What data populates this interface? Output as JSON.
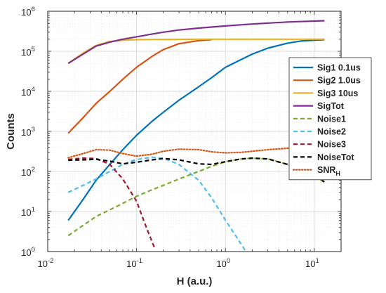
{
  "chart_data": {
    "type": "line",
    "title": "",
    "xlabel": "H (a.u.)",
    "ylabel": "Counts",
    "xscale": "log",
    "yscale": "log",
    "xlim": [
      0.01,
      20
    ],
    "ylim": [
      1,
      1000000
    ],
    "grid": true,
    "legend_position": "right",
    "x_ticks": [
      {
        "base": "10",
        "exp": "-2",
        "value": 0.01
      },
      {
        "base": "10",
        "exp": "-1",
        "value": 0.1
      },
      {
        "base": "10",
        "exp": "0",
        "value": 1
      },
      {
        "base": "10",
        "exp": "1",
        "value": 10
      }
    ],
    "y_ticks": [
      {
        "base": "10",
        "exp": "0",
        "value": 1
      },
      {
        "base": "10",
        "exp": "1",
        "value": 10
      },
      {
        "base": "10",
        "exp": "2",
        "value": 100
      },
      {
        "base": "10",
        "exp": "3",
        "value": 1000
      },
      {
        "base": "10",
        "exp": "4",
        "value": 10000
      },
      {
        "base": "10",
        "exp": "5",
        "value": 100000
      },
      {
        "base": "10",
        "exp": "6",
        "value": 1000000
      }
    ],
    "series": [
      {
        "name": "Sig1 0.1us",
        "color": "#0072BD",
        "dash": "solid",
        "x": [
          0.017,
          0.025,
          0.035,
          0.05,
          0.07,
          0.1,
          0.15,
          0.2,
          0.3,
          0.5,
          0.7,
          1,
          1.5,
          2,
          3,
          5,
          7,
          10,
          13
        ],
        "y": [
          6,
          20,
          60,
          150,
          350,
          800,
          1800,
          3000,
          6000,
          13000,
          22000,
          40000,
          62000,
          85000,
          120000,
          160000,
          180000,
          190000,
          195000
        ]
      },
      {
        "name": "Sig2 1.0us",
        "color": "#D95319",
        "dash": "solid",
        "x": [
          0.017,
          0.025,
          0.035,
          0.05,
          0.07,
          0.1,
          0.15,
          0.2,
          0.3,
          0.5,
          0.7
        ],
        "y": [
          900,
          2200,
          5000,
          10000,
          20000,
          40000,
          75000,
          110000,
          155000,
          185000,
          195000
        ]
      },
      {
        "name": "Sig3 10us",
        "color": "#EDB120",
        "dash": "solid",
        "x": [
          0.017,
          0.025,
          0.035,
          0.05,
          0.07,
          0.1,
          0.15,
          0.2,
          0.3,
          0.5,
          1,
          2,
          5,
          13
        ],
        "y": [
          50000,
          90000,
          140000,
          175000,
          190000,
          195000,
          197000,
          198000,
          199000,
          200000,
          200000,
          200000,
          200000,
          200000
        ]
      },
      {
        "name": "SigTot",
        "color": "#7E2F8E",
        "dash": "solid",
        "x": [
          0.017,
          0.025,
          0.035,
          0.05,
          0.07,
          0.1,
          0.15,
          0.2,
          0.3,
          0.5,
          1,
          2,
          5,
          13
        ],
        "y": [
          50000,
          85000,
          135000,
          170000,
          200000,
          230000,
          270000,
          300000,
          340000,
          380000,
          430000,
          480000,
          540000,
          580000
        ]
      },
      {
        "name": "Noise1",
        "color": "#77AC30",
        "dash": "dashed",
        "x": [
          0.017,
          0.025,
          0.035,
          0.05,
          0.07,
          0.1,
          0.15,
          0.2,
          0.3,
          0.5,
          0.7,
          1,
          1.5,
          2,
          3,
          5,
          7,
          10,
          13
        ],
        "y": [
          2.5,
          4.5,
          7.5,
          11,
          16,
          24,
          35,
          45,
          65,
          100,
          135,
          175,
          205,
          215,
          205,
          150,
          110,
          75,
          55
        ]
      },
      {
        "name": "Noise2",
        "color": "#4DBEEE",
        "dash": "dashed",
        "x": [
          0.017,
          0.025,
          0.035,
          0.05,
          0.07,
          0.1,
          0.15,
          0.2,
          0.3,
          0.5,
          0.7,
          1,
          1.3,
          1.7
        ],
        "y": [
          30,
          45,
          65,
          100,
          150,
          200,
          225,
          215,
          150,
          60,
          22,
          6,
          2.5,
          1
        ]
      },
      {
        "name": "Noise3",
        "color": "#A2142F",
        "dash": "dashed",
        "x": [
          0.017,
          0.025,
          0.035,
          0.05,
          0.07,
          0.1,
          0.12,
          0.14,
          0.16
        ],
        "y": [
          200,
          215,
          210,
          150,
          65,
          18,
          6,
          2.5,
          1.2
        ]
      },
      {
        "name": "NoiseTot",
        "color": "#000000",
        "dash": "dashed",
        "x": [
          0.017,
          0.025,
          0.035,
          0.05,
          0.07,
          0.1,
          0.15,
          0.2,
          0.3,
          0.5,
          0.7,
          1,
          1.5,
          2,
          3,
          5,
          7,
          10,
          13
        ],
        "y": [
          190,
          195,
          200,
          180,
          155,
          170,
          195,
          210,
          195,
          155,
          150,
          175,
          205,
          215,
          205,
          150,
          110,
          75,
          55
        ]
      },
      {
        "name": "SNR",
        "name_subscript": "H",
        "color": "#D95319",
        "dash": "dotted",
        "x": [
          0.017,
          0.025,
          0.035,
          0.05,
          0.07,
          0.1,
          0.15,
          0.2,
          0.3,
          0.5,
          0.7,
          1,
          1.5,
          2,
          3,
          5,
          7,
          10,
          13
        ],
        "y": [
          220,
          280,
          350,
          340,
          280,
          240,
          270,
          320,
          360,
          350,
          310,
          290,
          300,
          320,
          350,
          380,
          370,
          360,
          350
        ]
      }
    ]
  }
}
